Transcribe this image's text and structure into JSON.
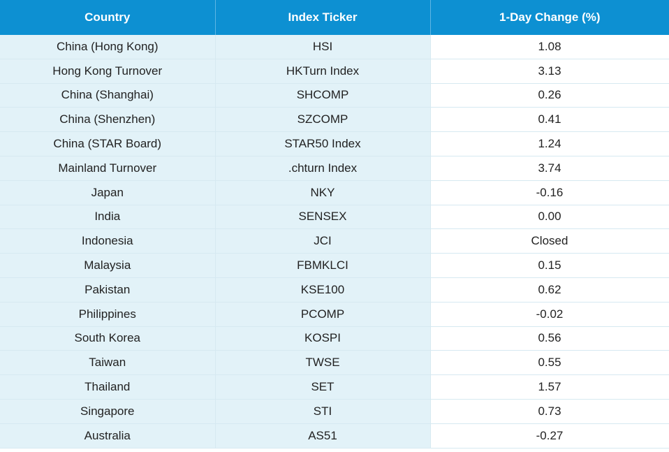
{
  "table": {
    "columns": [
      "Country",
      "Index Ticker",
      "1-Day Change (%)"
    ],
    "rows": [
      [
        "China (Hong Kong)",
        "HSI",
        "1.08"
      ],
      [
        "Hong Kong Turnover",
        "HKTurn Index",
        "3.13"
      ],
      [
        "China (Shanghai)",
        "SHCOMP",
        "0.26"
      ],
      [
        "China (Shenzhen)",
        "SZCOMP",
        "0.41"
      ],
      [
        "China (STAR Board)",
        "STAR50 Index",
        "1.24"
      ],
      [
        "Mainland Turnover",
        ".chturn Index",
        "3.74"
      ],
      [
        "Japan",
        "NKY",
        "-0.16"
      ],
      [
        "India",
        "SENSEX",
        "0.00"
      ],
      [
        "Indonesia",
        "JCI",
        "Closed"
      ],
      [
        "Malaysia",
        "FBMKLCI",
        "0.15"
      ],
      [
        "Pakistan",
        "KSE100",
        "0.62"
      ],
      [
        "Philippines",
        "PCOMP",
        "-0.02"
      ],
      [
        "South Korea",
        "KOSPI",
        "0.56"
      ],
      [
        "Taiwan",
        "TWSE",
        "0.55"
      ],
      [
        "Thailand",
        "SET",
        "1.57"
      ],
      [
        "Singapore",
        "STI",
        "0.73"
      ],
      [
        "Australia",
        "AS51",
        "-0.27"
      ]
    ]
  }
}
